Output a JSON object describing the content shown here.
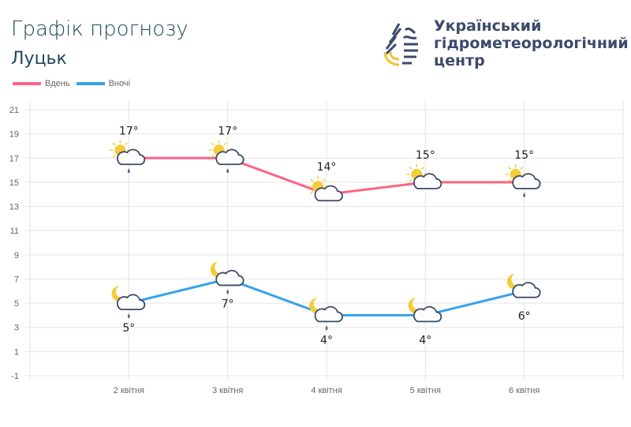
{
  "header": {
    "title": "Графік прогнозу",
    "city": "Луцьк"
  },
  "org": {
    "line1": "Український",
    "line2": "гідрометеорологічний",
    "line3": "центр"
  },
  "chart_data": {
    "type": "line",
    "categories": [
      "2 квітня",
      "3 квітня",
      "4 квітня",
      "5 квітня",
      "6 квітня"
    ],
    "series": [
      {
        "name": "Вдень",
        "color": "#ff6384",
        "values": [
          17,
          17,
          14,
          15,
          15
        ],
        "labels": [
          "17°",
          "17°",
          "14°",
          "15°",
          "15°"
        ],
        "icons": [
          "sun-cloud-rain",
          "sun-cloud-rain",
          "sun-cloud",
          "sun-cloud",
          "sun-cloud-rain"
        ]
      },
      {
        "name": "Вночі",
        "color": "#36a2eb",
        "values": [
          5,
          7,
          4,
          4,
          6
        ],
        "labels": [
          "5°",
          "7°",
          "4°",
          "4°",
          "6°"
        ],
        "icons": [
          "moon-cloud-rain",
          "moon-cloud-rain",
          "moon-cloud-rain",
          "moon-cloud",
          "moon-cloud"
        ]
      }
    ],
    "yticks": [
      "21",
      "19",
      "17",
      "15",
      "13",
      "11",
      "9",
      "7",
      "5",
      "3",
      "1",
      "-1"
    ],
    "ylim": [
      -1,
      21
    ],
    "grid": true,
    "legend": "top-left"
  }
}
